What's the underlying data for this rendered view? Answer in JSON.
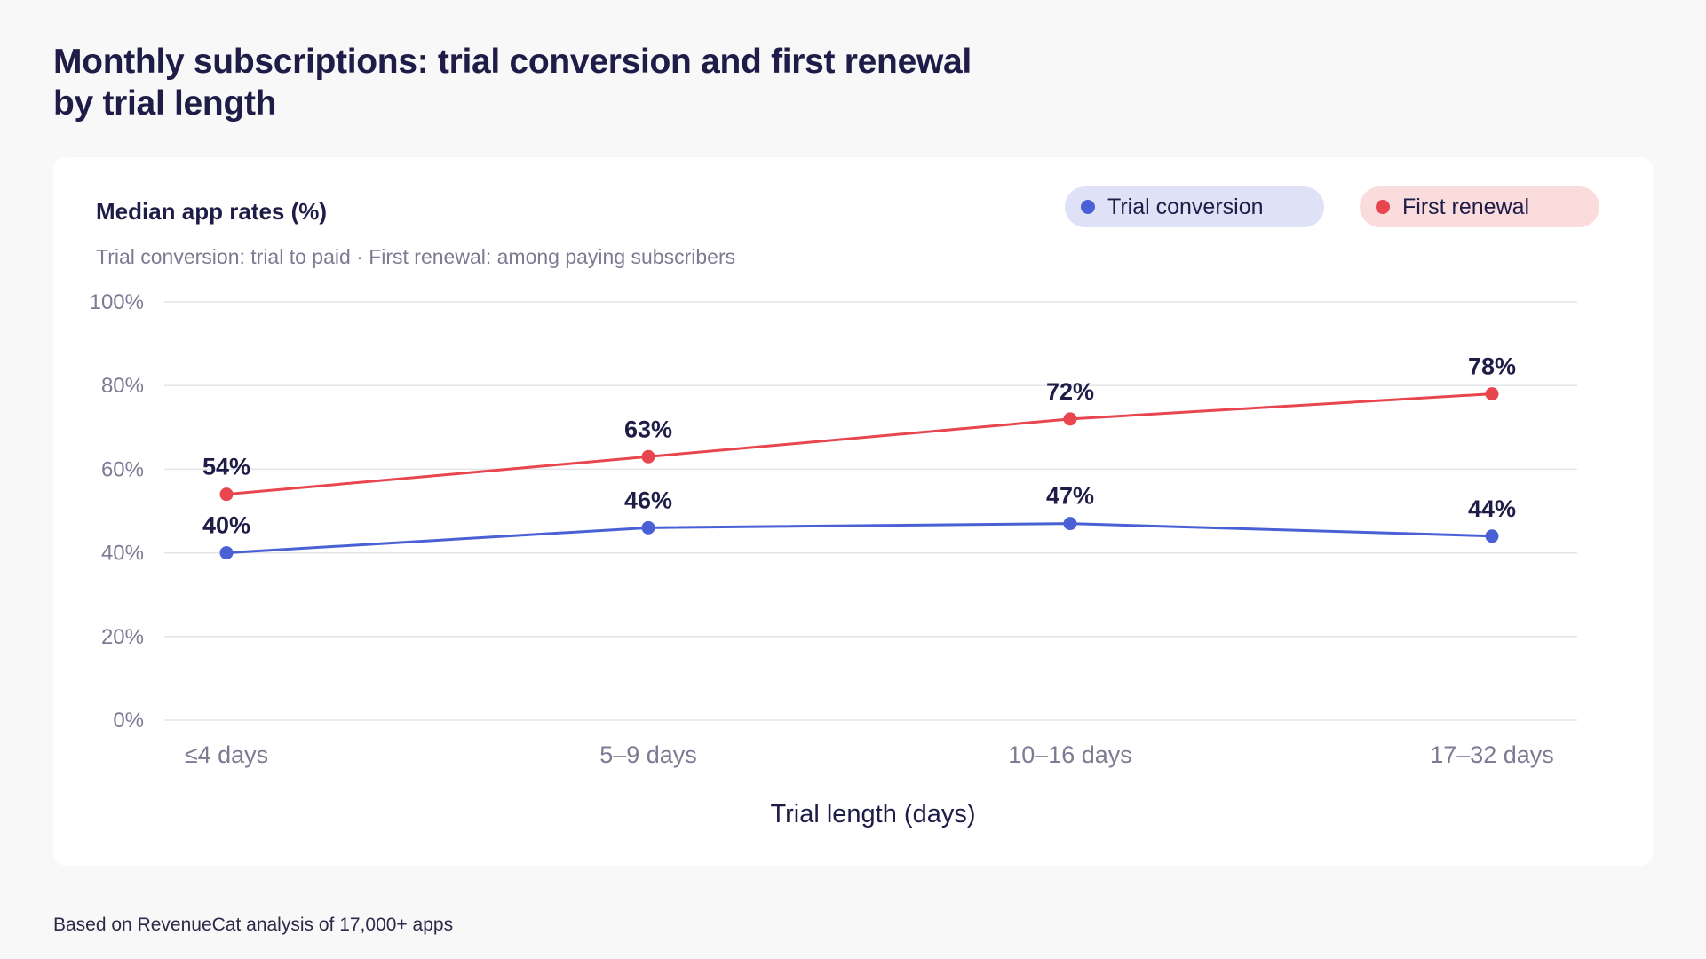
{
  "title": {
    "line1": "Monthly subscriptions: trial conversion and first renewal",
    "line2": "by trial length"
  },
  "panel": {
    "title": "Median app rates (%)",
    "subtitle": "Trial conversion: trial to paid · First renewal: among paying subscribers"
  },
  "legend": {
    "trial": "Trial conversion",
    "renewal": "First renewal"
  },
  "footnote": "Based on RevenueCat analysis of 17,000+ apps",
  "colors": {
    "trial": "#4a61d6",
    "renewal": "#e8454f",
    "grid": "#e3e3e8",
    "axis_text": "#7d7b93",
    "label_text": "#1f1d47"
  },
  "chart_data": {
    "type": "line",
    "title": "Median app rates (%)",
    "xlabel": "Trial length (days)",
    "ylabel": "",
    "categories": [
      "≤4 days",
      "5–9 days",
      "10–16 days",
      "17–32 days"
    ],
    "ylim": [
      0,
      100
    ],
    "yticks": [
      0,
      20,
      40,
      60,
      80,
      100
    ],
    "ytick_labels": [
      "0%",
      "20%",
      "40%",
      "60%",
      "80%",
      "100%"
    ],
    "grid": true,
    "legend_position": "top-right",
    "series": [
      {
        "name": "Trial conversion",
        "key": "trial",
        "values": [
          40,
          46,
          47,
          44
        ],
        "labels": [
          "40%",
          "46%",
          "47%",
          "44%"
        ]
      },
      {
        "name": "First renewal",
        "key": "renewal",
        "values": [
          54,
          63,
          72,
          78
        ],
        "labels": [
          "54%",
          "63%",
          "72%",
          "78%"
        ]
      }
    ]
  }
}
